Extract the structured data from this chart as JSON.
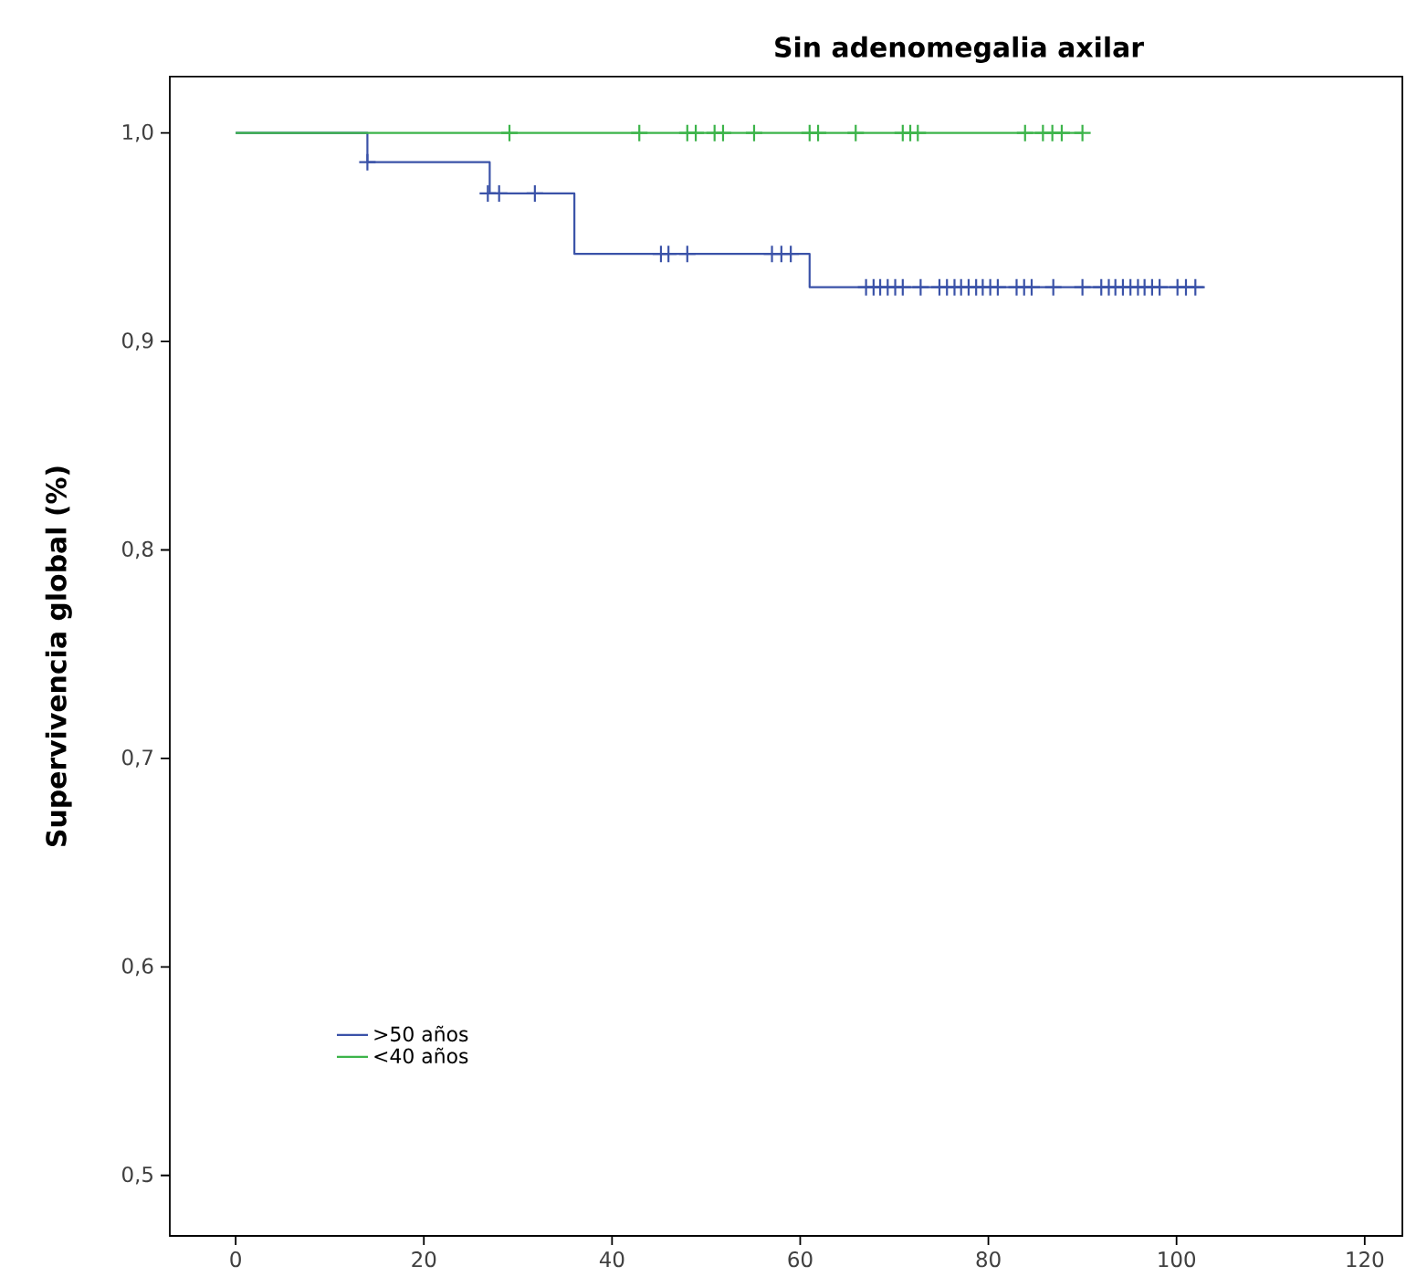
{
  "chart_data": {
    "type": "step",
    "title": "Sin adenomegalia axilar",
    "ylabel": "Supervivencia global (%)",
    "xlim": [
      -7,
      124
    ],
    "ylim": [
      0.471,
      1.027
    ],
    "xticks": [
      0,
      20,
      40,
      60,
      80,
      100,
      120
    ],
    "yticks": [
      {
        "value": 0.5,
        "label": "0,5"
      },
      {
        "value": 0.6,
        "label": "0,6"
      },
      {
        "value": 0.7,
        "label": "0,7"
      },
      {
        "value": 0.8,
        "label": "0,8"
      },
      {
        "value": 0.9,
        "label": "0,9"
      },
      {
        "value": 1.0,
        "label": "1,0"
      }
    ],
    "grid": false,
    "legend": "bottom left",
    "series": [
      {
        "name": ">50 años",
        "color": "#3a52a8",
        "x": [
          0,
          14,
          27,
          36,
          61,
          103
        ],
        "values": [
          1.0,
          0.986,
          0.971,
          0.942,
          0.926,
          0.926
        ]
      },
      {
        "color": "#3a52a8",
        "type": "scatter",
        "marker": "cross",
        "x": [
          14,
          26.8,
          28,
          31.8,
          45.2,
          46,
          48,
          57,
          58,
          59,
          67,
          67.8,
          68.5,
          69.3,
          70.1,
          70.9,
          72.8,
          74.8,
          75.6,
          76.4,
          77.1,
          77.9,
          78.7,
          79.4,
          80.2,
          81,
          83,
          83.8,
          84.6,
          86.9,
          90,
          92,
          92.8,
          93.5,
          94.3,
          95.1,
          95.9,
          96.6,
          97.4,
          98.2,
          100.1,
          101,
          102
        ],
        "values": [
          0.986,
          0.971,
          0.971,
          0.971,
          0.942,
          0.942,
          0.942,
          0.942,
          0.942,
          0.942,
          0.926,
          0.926,
          0.926,
          0.926,
          0.926,
          0.926,
          0.926,
          0.926,
          0.926,
          0.926,
          0.926,
          0.926,
          0.926,
          0.926,
          0.926,
          0.926,
          0.926,
          0.926,
          0.926,
          0.926,
          0.926,
          0.926,
          0.926,
          0.926,
          0.926,
          0.926,
          0.926,
          0.926,
          0.926,
          0.926,
          0.926,
          0.926,
          0.926
        ]
      },
      {
        "name": "<40 años",
        "color": "#3cb44a",
        "x": [
          0,
          90
        ],
        "values": [
          1.0,
          1.0
        ]
      },
      {
        "color": "#3cb44a",
        "type": "scatter",
        "marker": "cross",
        "x": [
          29.1,
          42.9,
          48,
          48.9,
          50.9,
          51.8,
          55.1,
          61,
          61.9,
          65.9,
          70.9,
          71.7,
          72.5,
          83.9,
          85.8,
          86.8,
          87.8,
          90
        ],
        "values": [
          1.0,
          1.0,
          1.0,
          1.0,
          1.0,
          1.0,
          1.0,
          1.0,
          1.0,
          1.0,
          1.0,
          1.0,
          1.0,
          1.0,
          1.0,
          1.0,
          1.0,
          1.0
        ]
      }
    ]
  }
}
